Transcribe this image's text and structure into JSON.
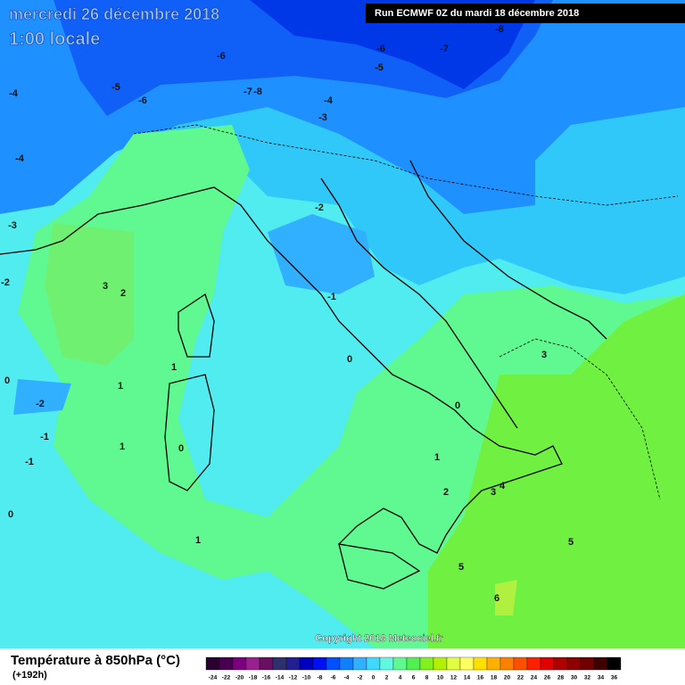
{
  "header": {
    "date": "mercredi 26 décembre 2018",
    "time": "1:00 locale",
    "run": "Run ECMWF 0Z du mardi 18 décembre 2018"
  },
  "map": {
    "contour_labels": [
      -4,
      -5,
      -6,
      -6,
      -7,
      -8,
      -6,
      -5,
      -7,
      -8,
      -4,
      -3,
      -4,
      -3,
      -2,
      -2,
      -1,
      3,
      2,
      1,
      1,
      0,
      -2,
      -1,
      -1,
      1,
      0,
      0,
      1,
      0,
      0,
      3,
      1,
      2,
      3,
      4,
      5,
      5,
      6
    ],
    "copyright": "Copyright 2018 Meteociel.fr"
  },
  "footer": {
    "title": "Température à 850hPa (°C)",
    "lead": "(+192h)"
  },
  "legend": {
    "ticks": [
      -24,
      -22,
      -20,
      -18,
      -16,
      -14,
      -12,
      -10,
      -8,
      -6,
      -4,
      -2,
      0,
      2,
      4,
      6,
      8,
      10,
      12,
      14,
      16,
      18,
      20,
      22,
      24,
      26,
      28,
      30,
      32,
      34,
      36
    ],
    "colors": [
      "#2a0030",
      "#4a0050",
      "#7a0080",
      "#9a2090",
      "#6a1060",
      "#303070",
      "#202090",
      "#0000c0",
      "#0010f0",
      "#0050ff",
      "#1080ff",
      "#30b0ff",
      "#40d8ff",
      "#60f8e0",
      "#60f890",
      "#50f050",
      "#80f020",
      "#b0f000",
      "#e0ff40",
      "#ffff60",
      "#ffe000",
      "#ffb000",
      "#ff8000",
      "#ff5000",
      "#ff2000",
      "#e00000",
      "#b00000",
      "#900000",
      "#700000",
      "#400000",
      "#000000"
    ]
  }
}
